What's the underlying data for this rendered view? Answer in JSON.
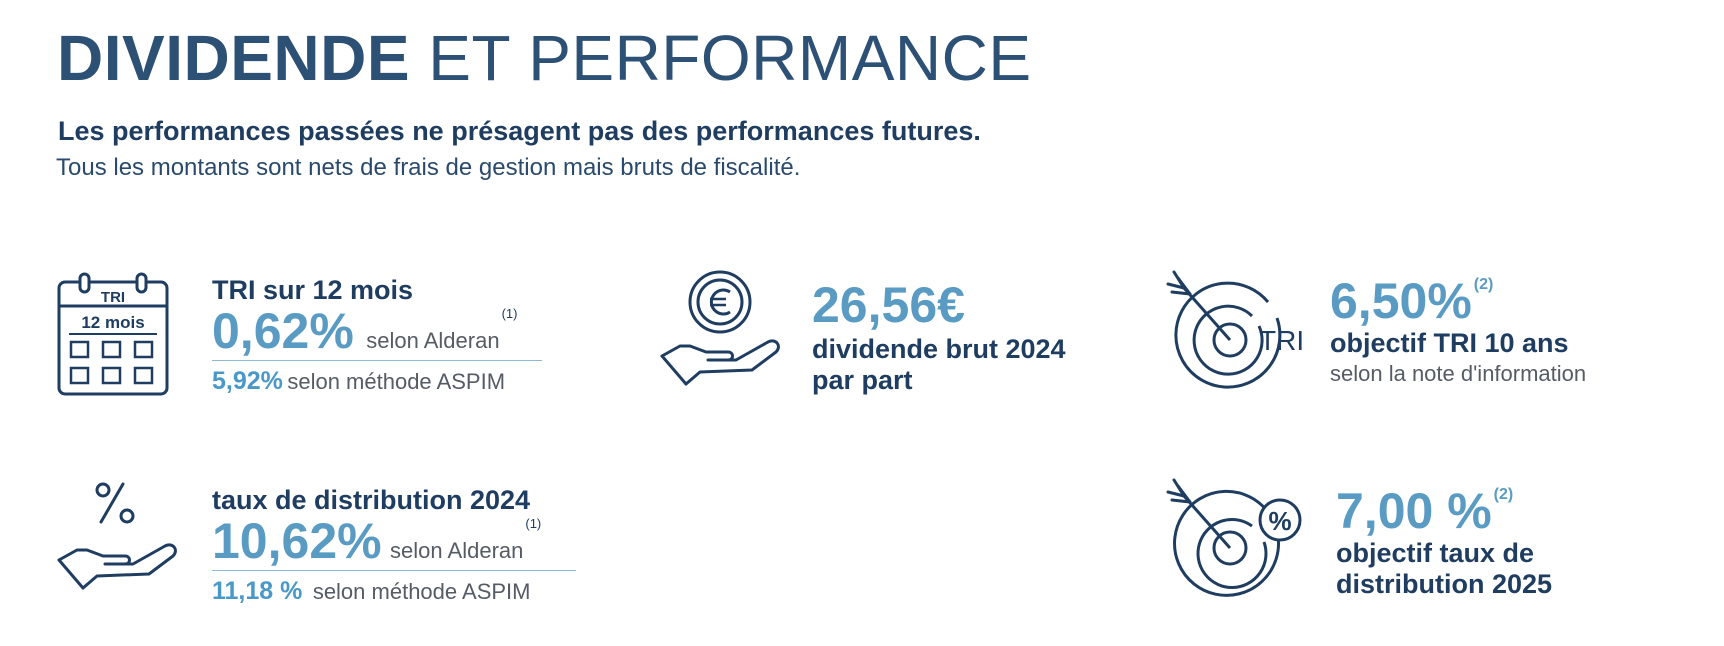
{
  "header": {
    "title_bold": "DIVIDENDE",
    "title_light": "ET PERFORMANCE",
    "disclaimer": "Les performances passées ne présagent pas des performances futures.",
    "note": "Tous les montants sont nets de frais de gestion mais bruts de fiscalité."
  },
  "tri12": {
    "icon": "calendar-icon",
    "icon_top_text": "TRI",
    "icon_mid_text": "12 mois",
    "label": "TRI sur 12 mois",
    "value": "0,62%",
    "value_source": "selon Alderan",
    "value_note": "(1)",
    "aspim_value": "5,92%",
    "aspim_source": "selon méthode ASPIM"
  },
  "dividend": {
    "icon": "hand-euro-coin-icon",
    "value": "26,56€",
    "line1": "dividende brut 2024",
    "line2": "par part"
  },
  "tri10": {
    "icon": "target-tri-icon",
    "icon_text": "TRI",
    "value": "6,50%",
    "value_note": "(2)",
    "label": "objectif TRI 10 ans",
    "source": "selon la note d'information"
  },
  "distribution": {
    "icon": "hand-percent-icon",
    "label": "taux de distribution 2024",
    "value": "10,62%",
    "value_source": "selon Alderan",
    "value_note": "(1)",
    "aspim_value": "11,18 %",
    "aspim_source": "selon méthode ASPIM"
  },
  "distribution_target": {
    "icon": "target-percent-icon",
    "value": "7,00 %",
    "value_note": "(2)",
    "line1": "objectif taux de",
    "line2": "distribution 2025"
  },
  "colors": {
    "navy": "#1f3d60",
    "title": "#2d5075",
    "accent": "#5a9bc4",
    "gray": "#555c66"
  }
}
